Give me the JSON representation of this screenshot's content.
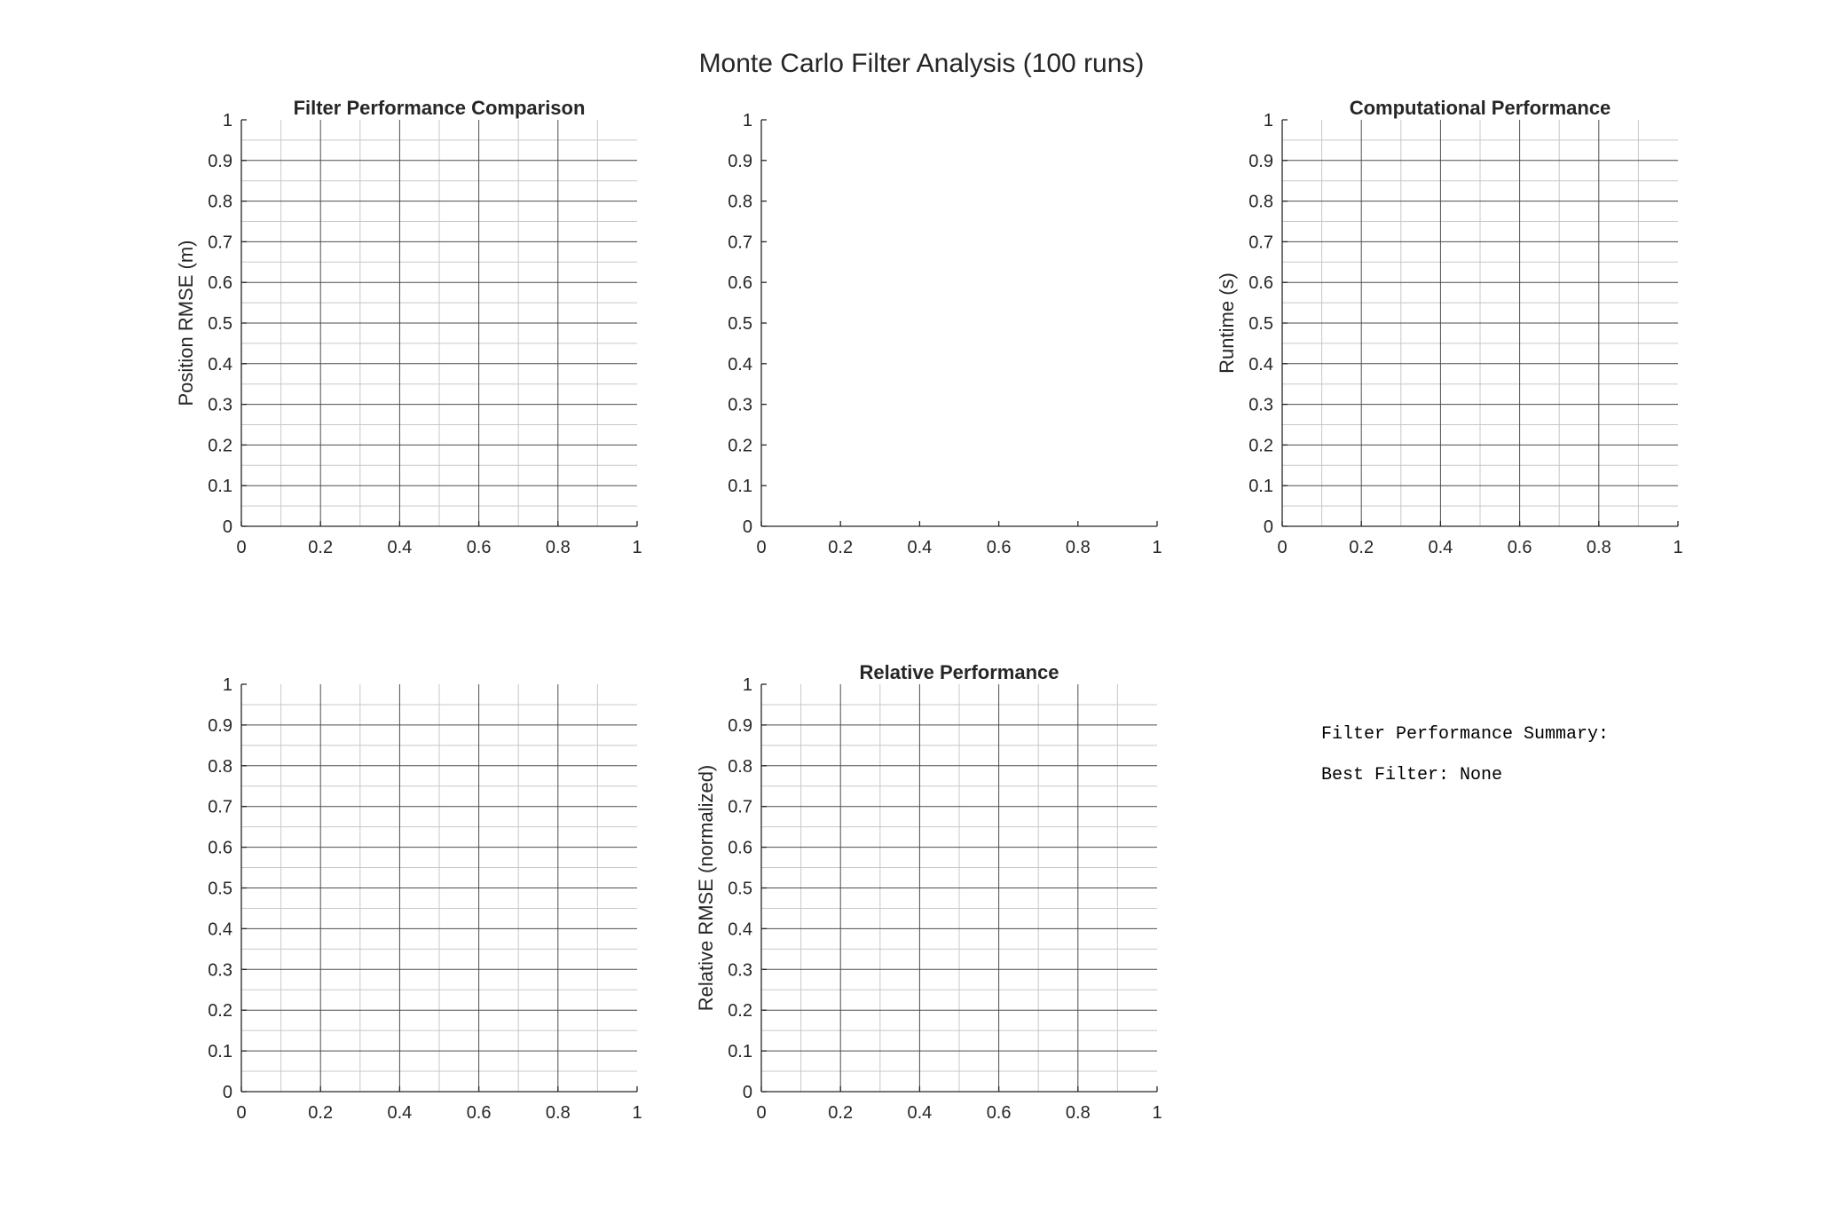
{
  "figure": {
    "title": "Monte Carlo Filter Analysis (100 runs)"
  },
  "summary": {
    "heading": "Filter Performance Summary:",
    "best_filter": "Best Filter: None"
  },
  "colors": {
    "text": "#262626",
    "major_grid": "#4d4d4d",
    "minor_grid": "#c8c8c8",
    "axis": "#262626"
  },
  "chart_data": [
    {
      "type": "bar",
      "title": "Filter Performance Comparison",
      "xlabel": "",
      "ylabel": "Position RMSE (m)",
      "xlim": [
        0,
        1
      ],
      "ylim": [
        0,
        1
      ],
      "xticks": [
        "0",
        "0.2",
        "0.4",
        "0.6",
        "0.8",
        "1"
      ],
      "yticks": [
        "0",
        "0.1",
        "0.2",
        "0.3",
        "0.4",
        "0.5",
        "0.6",
        "0.7",
        "0.8",
        "0.9",
        "1"
      ],
      "grid": true,
      "series": []
    },
    {
      "type": "line",
      "title": "",
      "xlabel": "",
      "ylabel": "",
      "xlim": [
        0,
        1
      ],
      "ylim": [
        0,
        1
      ],
      "xticks": [
        "0",
        "0.2",
        "0.4",
        "0.6",
        "0.8",
        "1"
      ],
      "yticks": [
        "0",
        "0.1",
        "0.2",
        "0.3",
        "0.4",
        "0.5",
        "0.6",
        "0.7",
        "0.8",
        "0.9",
        "1"
      ],
      "grid": false,
      "series": []
    },
    {
      "type": "bar",
      "title": "Computational Performance",
      "xlabel": "",
      "ylabel": "Runtime (s)",
      "xlim": [
        0,
        1
      ],
      "ylim": [
        0,
        1
      ],
      "xticks": [
        "0",
        "0.2",
        "0.4",
        "0.6",
        "0.8",
        "1"
      ],
      "yticks": [
        "0",
        "0.1",
        "0.2",
        "0.3",
        "0.4",
        "0.5",
        "0.6",
        "0.7",
        "0.8",
        "0.9",
        "1"
      ],
      "grid": true,
      "series": []
    },
    {
      "type": "bar",
      "title": "",
      "xlabel": "",
      "ylabel": "",
      "xlim": [
        0,
        1
      ],
      "ylim": [
        0,
        1
      ],
      "xticks": [
        "0",
        "0.2",
        "0.4",
        "0.6",
        "0.8",
        "1"
      ],
      "yticks": [
        "0",
        "0.1",
        "0.2",
        "0.3",
        "0.4",
        "0.5",
        "0.6",
        "0.7",
        "0.8",
        "0.9",
        "1"
      ],
      "grid": true,
      "series": []
    },
    {
      "type": "bar",
      "title": "Relative Performance",
      "xlabel": "",
      "ylabel": "Relative RMSE (normalized)",
      "xlim": [
        0,
        1
      ],
      "ylim": [
        0,
        1
      ],
      "xticks": [
        "0",
        "0.2",
        "0.4",
        "0.6",
        "0.8",
        "1"
      ],
      "yticks": [
        "0",
        "0.1",
        "0.2",
        "0.3",
        "0.4",
        "0.5",
        "0.6",
        "0.7",
        "0.8",
        "0.9",
        "1"
      ],
      "grid": true,
      "series": []
    }
  ]
}
